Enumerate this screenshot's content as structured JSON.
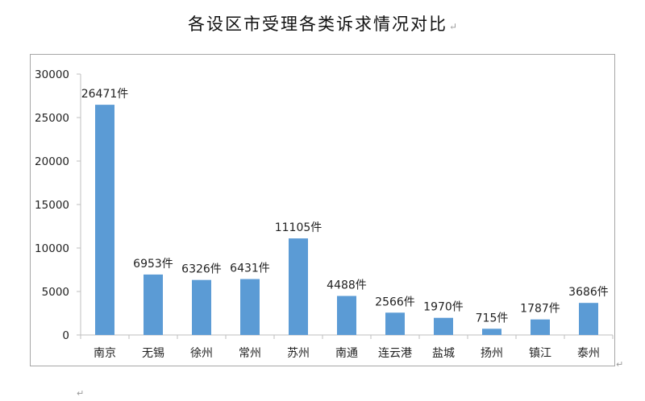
{
  "title": "各设区市受理各类诉求情况对比",
  "paragraph_mark": "↵",
  "colors": {
    "bar": "#5b9bd5",
    "axis": "#bfbfbf",
    "frame": "#a6a6a6"
  },
  "chart_data": {
    "type": "bar",
    "title": "各设区市受理各类诉求情况对比",
    "categories": [
      "南京",
      "无锡",
      "徐州",
      "常州",
      "苏州",
      "南通",
      "连云港",
      "盐城",
      "扬州",
      "镇江",
      "泰州"
    ],
    "values": [
      26471,
      6953,
      6326,
      6431,
      11105,
      4488,
      2566,
      1970,
      715,
      1787,
      3686
    ],
    "data_labels": [
      "26471件",
      "6953件",
      "6326件",
      "6431件",
      "11105件",
      "4488件",
      "2566件",
      "1970件",
      "715件",
      "1787件",
      "3686件"
    ],
    "yticks": [
      "0",
      "5000",
      "10000",
      "15000",
      "20000",
      "25000",
      "30000"
    ],
    "ylim": [
      0,
      30000
    ],
    "xlabel": "",
    "ylabel": "",
    "grid": false,
    "legend": "none"
  }
}
